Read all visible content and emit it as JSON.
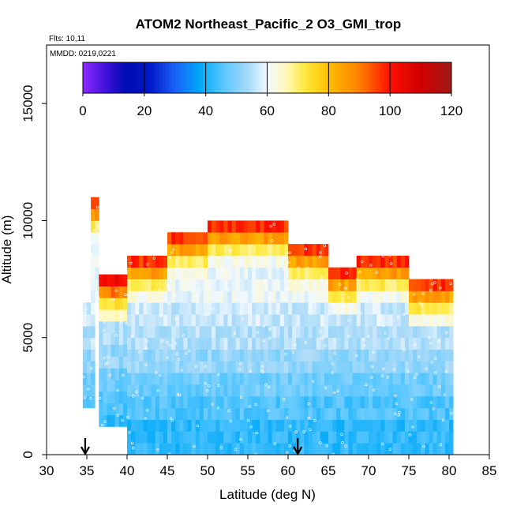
{
  "chart_data": {
    "type": "heatmap",
    "title": "ATOM2 Northeast_Pacific_2 O3_GMI_trop",
    "flights_label": "Flts: 10,11",
    "dates_label": "MMDD: 0219,0221",
    "xlabel": "Latitude (deg N)",
    "ylabel": "Altitude (m)",
    "xlim": [
      30,
      85
    ],
    "ylim": [
      0,
      17500
    ],
    "x_ticks": [
      30,
      35,
      40,
      45,
      50,
      55,
      60,
      65,
      70,
      75,
      80,
      85
    ],
    "y_ticks": [
      0,
      5000,
      10000,
      15000
    ],
    "colorbar": {
      "min": 0,
      "max": 120,
      "ticks": [
        0,
        20,
        40,
        60,
        80,
        100,
        120
      ],
      "stops": [
        {
          "value": 0,
          "color": "#8B2BFF"
        },
        {
          "value": 8,
          "color": "#3A10D8"
        },
        {
          "value": 14,
          "color": "#000CB0"
        },
        {
          "value": 22,
          "color": "#0018C8"
        },
        {
          "value": 30,
          "color": "#1860F8"
        },
        {
          "value": 38,
          "color": "#00A8F8"
        },
        {
          "value": 46,
          "color": "#5CC8FF"
        },
        {
          "value": 54,
          "color": "#A8DAF8"
        },
        {
          "value": 60,
          "color": "#F0F8FF"
        },
        {
          "value": 66,
          "color": "#FFF8C0"
        },
        {
          "value": 72,
          "color": "#FFEA40"
        },
        {
          "value": 80,
          "color": "#FFBE00"
        },
        {
          "value": 90,
          "color": "#FF8000"
        },
        {
          "value": 100,
          "color": "#FF1000"
        },
        {
          "value": 110,
          "color": "#D00000"
        },
        {
          "value": 120,
          "color": "#A01818"
        }
      ]
    },
    "arrows_at_latitude": [
      34.8,
      61.2
    ],
    "profile_columns": [
      {
        "lat_start": 34.5,
        "lat_end": 36.0,
        "top": 6500,
        "bottom": 2000,
        "tail_top": 7500,
        "tail_bottom": 6500
      },
      {
        "lat_start": 35.5,
        "lat_end": 36.5,
        "top": 11000,
        "bottom": 6500,
        "tail_top": 11000,
        "tail_bottom": 6500
      },
      {
        "lat_start": 36.5,
        "lat_end": 40.0,
        "top": 7500,
        "bottom": 1200
      },
      {
        "lat_start": 40.0,
        "lat_end": 45.0,
        "top": 8500,
        "bottom": 0
      },
      {
        "lat_start": 45.0,
        "lat_end": 50.0,
        "top": 9500,
        "bottom": 0
      },
      {
        "lat_start": 50.0,
        "lat_end": 60.0,
        "top": 10000,
        "bottom": 0
      },
      {
        "lat_start": 60.0,
        "lat_end": 65.0,
        "top": 9000,
        "bottom": 0
      },
      {
        "lat_start": 65.0,
        "lat_end": 68.5,
        "top": 8000,
        "bottom": 0
      },
      {
        "lat_start": 68.5,
        "lat_end": 75.0,
        "top": 8500,
        "bottom": 0
      },
      {
        "lat_start": 75.0,
        "lat_end": 80.5,
        "top": 7500,
        "bottom": 0
      }
    ],
    "layers": [
      {
        "from": 0,
        "to": 1500,
        "value": 42
      },
      {
        "from": 1500,
        "to": 2500,
        "value": 45
      },
      {
        "from": 2500,
        "to": 3500,
        "value": 48
      },
      {
        "from": 3500,
        "to": 4500,
        "value": 52
      },
      {
        "from": 4500,
        "to": 5500,
        "value": 55
      },
      {
        "from": 5500,
        "to": 6500,
        "value": 57
      },
      {
        "from": 6500,
        "to": 7000,
        "value": 62
      },
      {
        "from": 7000,
        "to": 7500,
        "value": 78
      },
      {
        "from": 7500,
        "to": 8000,
        "value": 85
      },
      {
        "from": 8000,
        "to": 8500,
        "value": 92
      },
      {
        "from": 8500,
        "to": 9000,
        "value": 98
      },
      {
        "from": 9000,
        "to": 9500,
        "value": 104
      },
      {
        "from": 9500,
        "to": 10000,
        "value": 110
      },
      {
        "from": 10000,
        "to": 11000,
        "value": 114
      }
    ]
  }
}
